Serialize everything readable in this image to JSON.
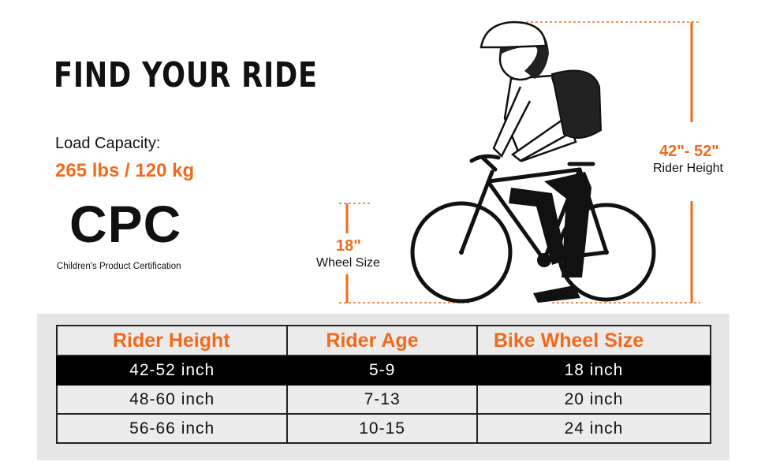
{
  "title": "FIND YOUR RIDE",
  "load": {
    "label": "Load Capacity:",
    "value": "265 lbs / 120 kg"
  },
  "certification": {
    "logo": "CPC",
    "caption": "Children's Product Certification"
  },
  "wheel_annotation": {
    "value": "18\"",
    "caption": "Wheel Size"
  },
  "height_annotation": {
    "value": "42\"- 52\"",
    "caption": "Rider Height"
  },
  "colors": {
    "accent": "#f26a1b",
    "text": "#111111",
    "panel": "#e6e6e6"
  },
  "table": {
    "headers": [
      "Rider Height",
      "Rider Age",
      "Bike Wheel Size"
    ],
    "rows": [
      [
        "42-52 inch",
        "5-9",
        "18 inch"
      ],
      [
        "48-60 inch",
        "7-13",
        "20 inch"
      ],
      [
        "56-66 inch",
        "10-15",
        "24 inch"
      ]
    ]
  }
}
